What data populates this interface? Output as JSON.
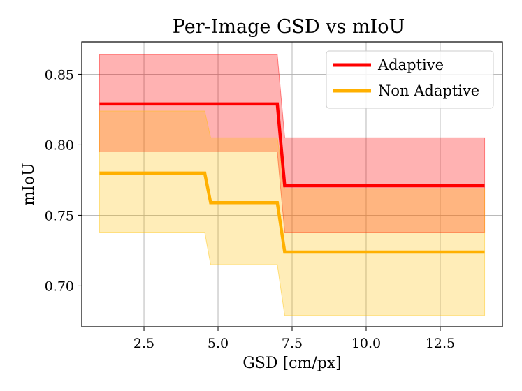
{
  "chart_data": {
    "type": "line",
    "title": "Per-Image GSD vs mIoU",
    "xlabel": "GSD [cm/px]",
    "ylabel": "mIoU",
    "xlim": [
      0.4,
      14.6
    ],
    "ylim": [
      0.671,
      0.873
    ],
    "xticks": [
      2.5,
      5.0,
      7.5,
      10.0,
      12.5
    ],
    "xtick_labels": [
      "2.5",
      "5.0",
      "7.5",
      "10.0",
      "12.5"
    ],
    "yticks": [
      0.7,
      0.75,
      0.8,
      0.85
    ],
    "ytick_labels": [
      "0.70",
      "0.75",
      "0.80",
      "0.85"
    ],
    "grid": true,
    "legend_position": "top-right",
    "series": [
      {
        "name": "Adaptive",
        "color": "#ff0000",
        "band_color": "#ff0000",
        "x": [
          1.0,
          7.0,
          7.25,
          14.0
        ],
        "y": [
          0.829,
          0.829,
          0.771,
          0.771
        ],
        "upper": [
          0.864,
          0.864,
          0.805,
          0.805
        ],
        "lower": [
          0.795,
          0.795,
          0.738,
          0.738
        ]
      },
      {
        "name": "Non Adaptive",
        "color": "#ffb000",
        "band_color": "#ffc000",
        "x": [
          1.0,
          4.55,
          4.75,
          7.0,
          7.25,
          14.0
        ],
        "y": [
          0.78,
          0.78,
          0.759,
          0.759,
          0.724,
          0.724
        ],
        "upper": [
          0.824,
          0.824,
          0.805,
          0.805,
          0.769,
          0.769
        ],
        "lower": [
          0.738,
          0.738,
          0.715,
          0.715,
          0.679,
          0.679
        ]
      }
    ]
  }
}
